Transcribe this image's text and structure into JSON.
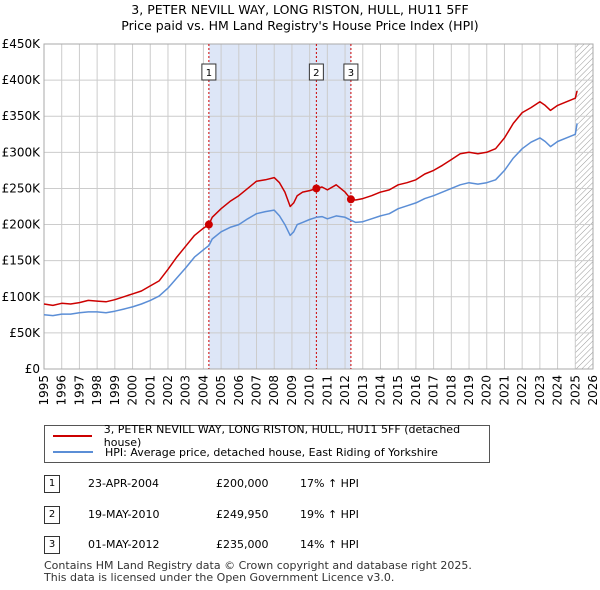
{
  "header": {
    "title_line1": "3, PETER NEVILL WAY, LONG RISTON, HULL, HU11 5FF",
    "title_line2": "Price paid vs. HM Land Registry's House Price Index (HPI)"
  },
  "legend": {
    "red_label": "3, PETER NEVILL WAY, LONG RISTON, HULL, HU11 5FF (detached house)",
    "blue_label": "HPI: Average price, detached house, East Riding of Yorkshire"
  },
  "sales": [
    {
      "num": "1",
      "date": "23-APR-2004",
      "price": "£200,000",
      "hpi": "17% ↑ HPI"
    },
    {
      "num": "2",
      "date": "19-MAY-2010",
      "price": "£249,950",
      "hpi": "19% ↑ HPI"
    },
    {
      "num": "3",
      "date": "01-MAY-2012",
      "price": "£235,000",
      "hpi": "14% ↑ HPI"
    }
  ],
  "footer": {
    "line1": "Contains HM Land Registry data © Crown copyright and database right 2025.",
    "line2": "This data is licensed under the Open Government Licence v3.0."
  },
  "colors": {
    "price_line": "#cc0000",
    "hpi_line": "#5b8ed6",
    "shade": "#dde6f7",
    "grid": "#cccccc"
  },
  "chart_data": {
    "type": "line",
    "title": "Price paid vs. HM Land Registry's House Price Index (HPI)",
    "xlim": [
      1995,
      2026
    ],
    "ylim": [
      0,
      450000
    ],
    "x_ticks": [
      1995,
      1996,
      1997,
      1998,
      1999,
      2000,
      2001,
      2002,
      2003,
      2004,
      2005,
      2006,
      2007,
      2008,
      2009,
      2010,
      2011,
      2012,
      2013,
      2014,
      2015,
      2016,
      2017,
      2018,
      2019,
      2020,
      2021,
      2022,
      2023,
      2024,
      2025,
      2026
    ],
    "x_tick_labels": [
      "1995",
      "1996",
      "1997",
      "1998",
      "1999",
      "2000",
      "2001",
      "2002",
      "2003",
      "2004",
      "2005",
      "2006",
      "2007",
      "2008",
      "2009",
      "2010",
      "2011",
      "2012",
      "2013",
      "2014",
      "2015",
      "2016",
      "2017",
      "2018",
      "2019",
      "2020",
      "2021",
      "2022",
      "2023",
      "2024",
      "2025",
      "2026"
    ],
    "y_ticks": [
      0,
      50000,
      100000,
      150000,
      200000,
      250000,
      300000,
      350000,
      400000,
      450000
    ],
    "y_tick_labels": [
      "£0",
      "£50K",
      "£100K",
      "£150K",
      "£200K",
      "£250K",
      "£300K",
      "£350K",
      "£400K",
      "£450K"
    ],
    "shaded_span": [
      2004.31,
      2012.33
    ],
    "forecast_from": 2025.0,
    "markers": [
      {
        "label": "1",
        "x": 2004.31,
        "y": 200000
      },
      {
        "label": "2",
        "x": 2010.38,
        "y": 249950
      },
      {
        "label": "3",
        "x": 2012.33,
        "y": 235000
      }
    ],
    "series": [
      {
        "name": "3, PETER NEVILL WAY, LONG RISTON, HULL, HU11 5FF (detached house)",
        "x": [
          1995.0,
          1995.5,
          1996.0,
          1996.5,
          1997.0,
          1997.5,
          1998.0,
          1998.5,
          1999.0,
          1999.5,
          2000.0,
          2000.5,
          2001.0,
          2001.5,
          2002.0,
          2002.5,
          2003.0,
          2003.5,
          2004.0,
          2004.31,
          2004.5,
          2005.0,
          2005.5,
          2006.0,
          2006.5,
          2007.0,
          2007.5,
          2008.0,
          2008.3,
          2008.6,
          2008.9,
          2009.1,
          2009.3,
          2009.6,
          2010.0,
          2010.38,
          2010.7,
          2011.0,
          2011.5,
          2012.0,
          2012.33,
          2012.6,
          2013.0,
          2013.5,
          2014.0,
          2014.5,
          2015.0,
          2015.5,
          2016.0,
          2016.5,
          2017.0,
          2017.5,
          2018.0,
          2018.5,
          2019.0,
          2019.5,
          2020.0,
          2020.5,
          2021.0,
          2021.5,
          2022.0,
          2022.5,
          2023.0,
          2023.3,
          2023.6,
          2024.0,
          2024.5,
          2025.0,
          2025.1
        ],
        "y": [
          90000,
          88000,
          91000,
          90000,
          92000,
          95000,
          94000,
          93000,
          96000,
          100000,
          104000,
          108000,
          115000,
          122000,
          138000,
          155000,
          170000,
          185000,
          195000,
          200000,
          210000,
          222000,
          232000,
          240000,
          250000,
          260000,
          262000,
          265000,
          258000,
          245000,
          225000,
          230000,
          240000,
          245000,
          247000,
          249950,
          252000,
          248000,
          255000,
          245000,
          235000,
          234000,
          236000,
          240000,
          245000,
          248000,
          255000,
          258000,
          262000,
          270000,
          275000,
          282000,
          290000,
          298000,
          300000,
          298000,
          300000,
          305000,
          320000,
          340000,
          355000,
          362000,
          370000,
          365000,
          358000,
          365000,
          370000,
          375000,
          385000
        ]
      },
      {
        "name": "HPI: Average price, detached house, East Riding of Yorkshire",
        "x": [
          1995.0,
          1995.5,
          1996.0,
          1996.5,
          1997.0,
          1997.5,
          1998.0,
          1998.5,
          1999.0,
          1999.5,
          2000.0,
          2000.5,
          2001.0,
          2001.5,
          2002.0,
          2002.5,
          2003.0,
          2003.5,
          2004.0,
          2004.31,
          2004.5,
          2005.0,
          2005.5,
          2006.0,
          2006.5,
          2007.0,
          2007.5,
          2008.0,
          2008.3,
          2008.6,
          2008.9,
          2009.1,
          2009.3,
          2009.6,
          2010.0,
          2010.38,
          2010.7,
          2011.0,
          2011.5,
          2012.0,
          2012.33,
          2012.6,
          2013.0,
          2013.5,
          2014.0,
          2014.5,
          2015.0,
          2015.5,
          2016.0,
          2016.5,
          2017.0,
          2017.5,
          2018.0,
          2018.5,
          2019.0,
          2019.5,
          2020.0,
          2020.5,
          2021.0,
          2021.5,
          2022.0,
          2022.5,
          2023.0,
          2023.3,
          2023.6,
          2024.0,
          2024.5,
          2025.0,
          2025.1
        ],
        "y": [
          75000,
          74000,
          76000,
          76000,
          78000,
          79000,
          79000,
          78000,
          80000,
          83000,
          86000,
          90000,
          95000,
          101000,
          112000,
          126000,
          140000,
          155000,
          165000,
          171000,
          180000,
          190000,
          196000,
          200000,
          208000,
          215000,
          218000,
          220000,
          212000,
          200000,
          185000,
          190000,
          200000,
          203000,
          207000,
          210000,
          211000,
          208000,
          212000,
          210000,
          206000,
          203000,
          204000,
          208000,
          212000,
          215000,
          222000,
          226000,
          230000,
          236000,
          240000,
          245000,
          250000,
          255000,
          258000,
          256000,
          258000,
          262000,
          275000,
          292000,
          305000,
          314000,
          320000,
          315000,
          308000,
          315000,
          320000,
          325000,
          340000
        ]
      }
    ]
  }
}
